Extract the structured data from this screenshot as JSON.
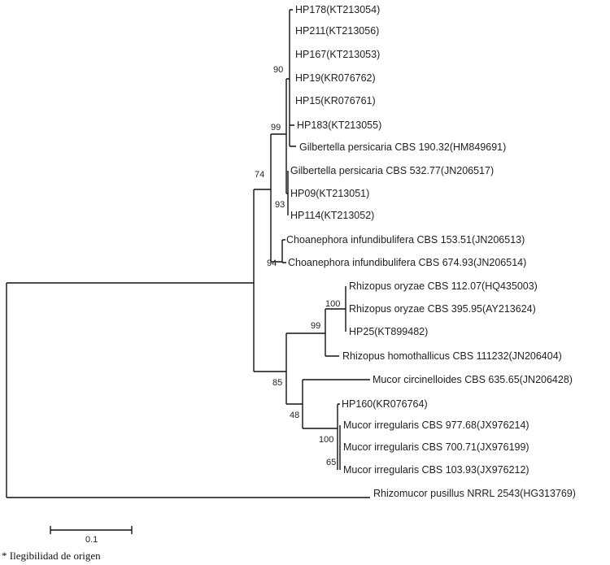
{
  "taxa": [
    "HP178(KT213054)",
    "HP211(KT213056)",
    "HP167(KT213053)",
    "HP19(KR076762)",
    "HP15(KR076761)",
    "HP183(KT213055)",
    "Gilbertella persicaria CBS 190.32(HM849691)",
    "Gilbertella persicaria CBS 532.77(JN206517)",
    "HP09(KT213051)",
    "HP114(KT213052)",
    "Choanephora infundibulifera CBS 153.51(JN206513)",
    "Choanephora infundibulifera CBS 674.93(JN206514)",
    "Rhizopus oryzae CBS 112.07(HQ435003)",
    "Rhizopus oryzae CBS 395.95(AY213624)",
    "HP25(KT899482)",
    "Rhizopus homothallicus CBS 111232(JN206404)",
    "Mucor circinelloides CBS 635.65(JN206428)",
    "HP160(KR076764)",
    "Mucor irregularis CBS 977.68(JX976214)",
    "Mucor irregularis CBS 700.71(JX976199)",
    "Mucor irregularis CBS 103.93(JX976212)",
    "Rhizomucor pusillus NRRL 2543(HG313769)"
  ],
  "bootstrap": {
    "n90": "90",
    "n99a": "99",
    "n74": "74",
    "n93": "93",
    "n94": "94",
    "n100a": "100",
    "n99b": "99",
    "n85": "85",
    "n48": "48",
    "n100b": "100",
    "n65": "65"
  },
  "scale_bar": {
    "label": "0.1",
    "value": 0.1
  },
  "footnote": "* Ilegibilidad de origen"
}
